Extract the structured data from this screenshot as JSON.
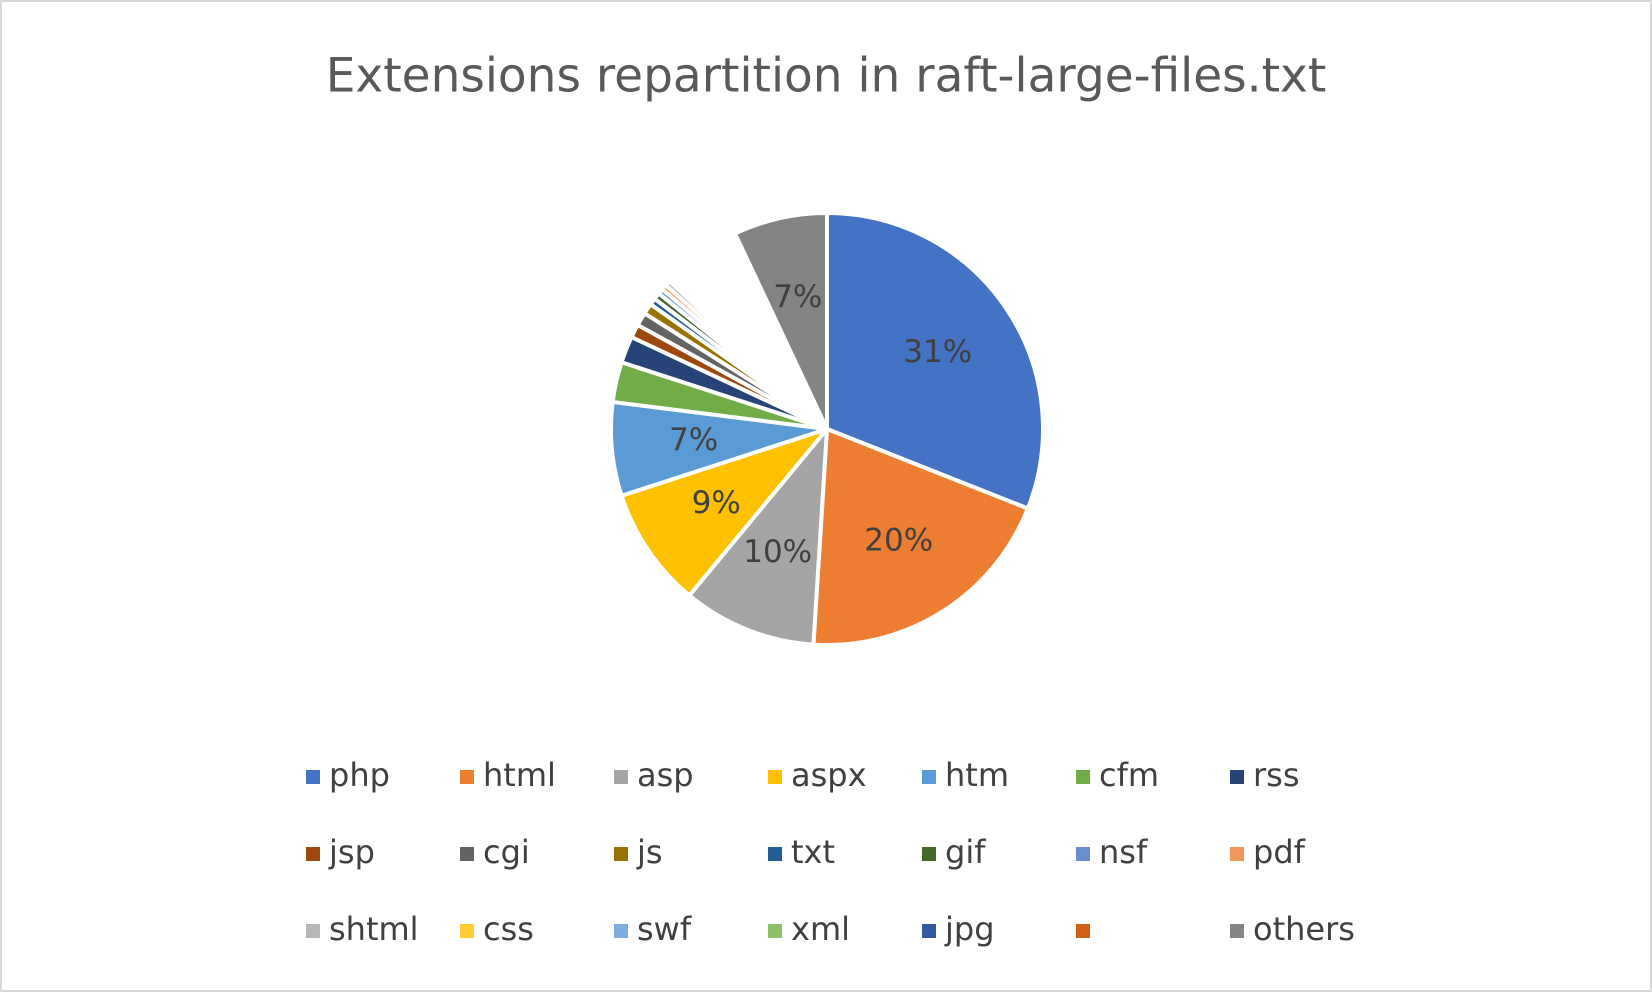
{
  "chart_data": {
    "type": "pie",
    "title": "Extensions repartition in raft-large-files.txt",
    "categories": [
      "php",
      "html",
      "asp",
      "aspx",
      "htm",
      "cfm",
      "rss",
      "jsp",
      "cgi",
      "js",
      "txt",
      "gif",
      "nsf",
      "pdf",
      "shtml",
      "css",
      "swf",
      "xml",
      "jpg",
      null,
      "others"
    ],
    "values": [
      31,
      20,
      10,
      9,
      7,
      3,
      2,
      1,
      1,
      0.8,
      0.5,
      0.5,
      0.4,
      0.4,
      0.4,
      0.3,
      0.3,
      0.2,
      0.2,
      5,
      7
    ],
    "value_labels": [
      "31%",
      "20%",
      "10%",
      "9%",
      "7%",
      null,
      null,
      null,
      null,
      null,
      null,
      null,
      null,
      null,
      null,
      null,
      null,
      null,
      null,
      null,
      "7%"
    ],
    "colors": [
      "#4472c4",
      "#ed7d31",
      "#a5a5a5",
      "#ffc000",
      "#5b9bd5",
      "#70ad47",
      "#264478",
      "#9e480e",
      "#636363",
      "#997300",
      "#255e91",
      "#43682b",
      "#698ed0",
      "#f1975a",
      "#b7b7b7",
      "#ffcd33",
      "#7cafdd",
      "#8cc168",
      "#335aa1",
      "#d26012",
      "#848484"
    ],
    "slice_colors": [
      "#4472c4",
      "#ed7d31",
      "#a5a5a5",
      "#ffc000",
      "#5b9bd5",
      "#70ad47",
      "#264478",
      "#9e480e",
      "#636363",
      "#997300",
      "#255e91",
      "#43682b",
      "#698ed0",
      "#f1975a",
      "#b7b7b7",
      "#ffcd33",
      "#7cafdd",
      "#8cc168",
      "#335aa1",
      "#ffffff",
      "#848484"
    ],
    "legend": "bottom"
  }
}
